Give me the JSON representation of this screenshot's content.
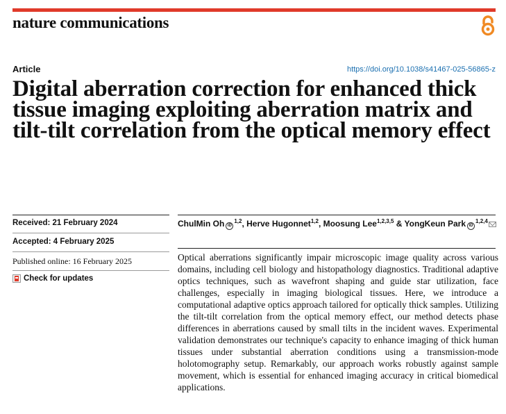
{
  "journal": {
    "name": "nature communications",
    "open_access_icon": "open-access-icon"
  },
  "article": {
    "type": "Article",
    "doi": "https://doi.org/10.1038/s41467-025-56865-z",
    "title": "Digital aberration correction for enhanced thick tissue imaging exploiting aberration matrix and tilt-tilt correlation from the optical memory effect"
  },
  "dates": {
    "received": "Received: 21 February 2024",
    "accepted": "Accepted: 4 February 2025",
    "published": "Published online: 16 February 2025"
  },
  "check_updates": "Check for updates",
  "authors": [
    {
      "name": "ChulMin Oh",
      "aff": "1,2"
    },
    {
      "name": "Herve Hugonnet",
      "aff": "1,2"
    },
    {
      "name": "Moosung Lee",
      "aff": "1,2,3,5"
    },
    {
      "name": "YongKeun Park",
      "aff": "1,2,4"
    }
  ],
  "separators": {
    "comma": ", ",
    "amp": " & "
  },
  "abstract": "Optical aberrations significantly impair microscopic image quality across various domains, including cell biology and histopathology diagnostics. Traditional adaptive optics techniques, such as wavefront shaping and guide star utilization, face challenges, especially in imaging biological tissues. Here, we introduce a computational adaptive optics approach tailored for optically thick samples. Utilizing the tilt-tilt correlation from the optical memory effect, our method detects phase differences in aberrations caused by small tilts in the incident waves. Experimental validation demonstrates our technique's capacity to enhance imaging of thick human tissues under substantial aberration conditions using a transmission-mode holotomography setup. Remarkably, our approach works robustly against sample movement, which is essential for enhanced imaging accuracy in critical biomedical applications.",
  "colors": {
    "accent_bar": "#e03a2a",
    "open_access": "#f08a24",
    "link": "#1a6fb0"
  }
}
